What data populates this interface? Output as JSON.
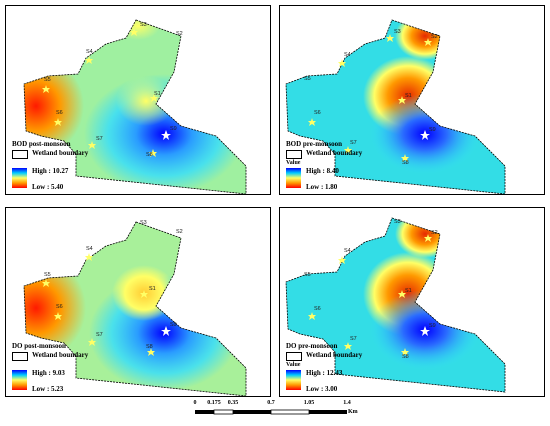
{
  "panels": [
    {
      "title": "BOD post-monsoon",
      "boundary_label": "Wetland boundary",
      "value_label": "",
      "high_label": "High : 10.27",
      "low_label": "Low : 5.40",
      "ramp": "ramp-a",
      "stations": [
        "S1",
        "S2",
        "S3",
        "S4",
        "S5",
        "S6",
        "S7",
        "S8",
        "S9"
      ]
    },
    {
      "title": "BOD pre-monsoon",
      "boundary_label": "Wetland boundary",
      "value_label": "Value",
      "high_label": "High : 8.40",
      "low_label": "Low : 1.80",
      "ramp": "ramp-b",
      "stations": [
        "S1",
        "S2",
        "S3",
        "S4",
        "S5",
        "S6",
        "S7",
        "S8",
        "S9"
      ]
    },
    {
      "title": "DO post-monsoon",
      "boundary_label": "Wetland boundary",
      "value_label": "",
      "high_label": "High : 9.03",
      "low_label": "Low : 5.23",
      "ramp": "ramp-a",
      "stations": [
        "S1",
        "S2",
        "S3",
        "S4",
        "S5",
        "S6",
        "S7",
        "S8",
        "S9"
      ]
    },
    {
      "title": "DO pre-monsoon",
      "boundary_label": "Wetland boundary",
      "value_label": "Value",
      "high_label": "High : 12.43",
      "low_label": "Low : 3.00",
      "ramp": "ramp-b",
      "stations": [
        "S1",
        "S2",
        "S3",
        "S4",
        "S5",
        "S6",
        "S7",
        "S8",
        "S9"
      ]
    }
  ],
  "scale_bar": {
    "ticks": [
      "0",
      "0.175",
      "0.35",
      "0.7",
      "1.05",
      "1.4"
    ],
    "unit": "Km"
  },
  "colors": {
    "high": "#0000ff",
    "mid_high": "#00ccff",
    "mid": "#ffff66",
    "low": "#ff0000",
    "star": "#ffff66"
  }
}
